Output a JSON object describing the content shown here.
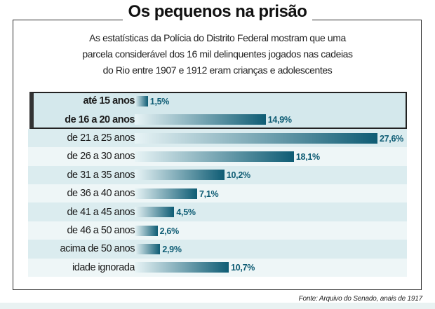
{
  "title": "Os pequenos na prisão",
  "subtitle_lines": [
    "As estatísticas da Polícia do Distrito Federal mostram que uma",
    "parcela considerável dos 16 mil delinquentes jogados nas cadeias",
    "do Rio entre 1907 e 1912 eram crianças e adolescentes"
  ],
  "source": "Fonte: Arquivo do Senado, anais de 1917",
  "colors": {
    "bar_dark": "#0e5c74",
    "bar_light": "#e8f4f6",
    "band_a": "#dbecef",
    "band_b": "#eef6f7",
    "highlight": "#d4e8ec",
    "value_text": "#0e5c74"
  },
  "chart_data": {
    "type": "bar",
    "orientation": "horizontal",
    "unit": "%",
    "categories": [
      "até 15 anos",
      "de 16 a 20 anos",
      "de 21 a 25 anos",
      "de 26 a 30 anos",
      "de 31 a 35 anos",
      "de 36 a 40 anos",
      "de 41 a 45 anos",
      "de 46 a 50 anos",
      "acima de 50 anos",
      "idade ignorada"
    ],
    "values": [
      1.5,
      14.9,
      27.6,
      18.1,
      10.2,
      7.1,
      4.5,
      2.6,
      2.9,
      10.7
    ],
    "value_labels": [
      "1,5%",
      "14,9%",
      "27,6%",
      "18,1%",
      "10,2%",
      "7,1%",
      "4,5%",
      "2,6%",
      "2,9%",
      "10,7%"
    ],
    "highlighted_categories": [
      "até 15 anos",
      "de 16 a 20 anos"
    ],
    "xlim": [
      0,
      27.6
    ],
    "grid": false,
    "legend": "none"
  }
}
